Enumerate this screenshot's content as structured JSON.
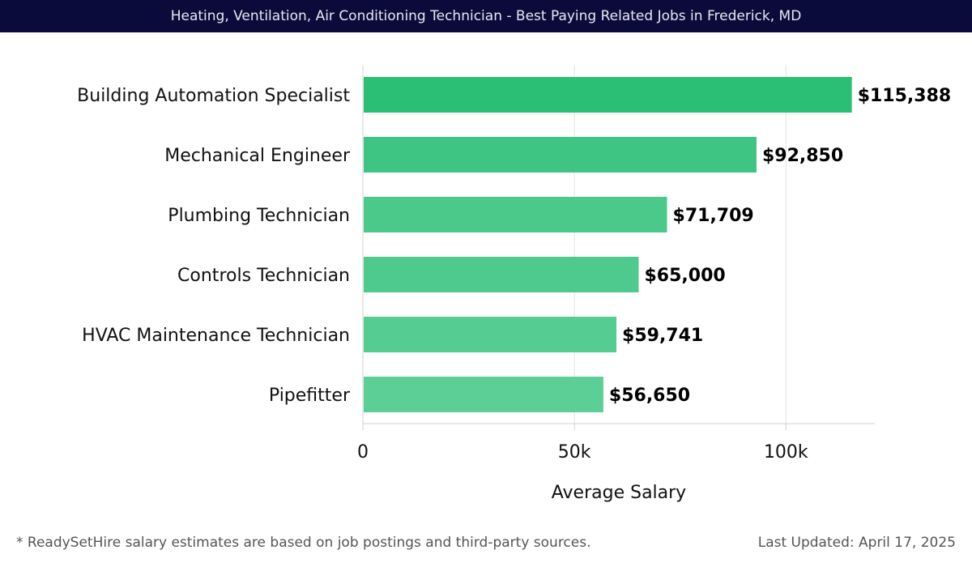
{
  "header": {
    "title": "Heating, Ventilation, Air Conditioning Technician - Best Paying Related Jobs in Frederick, MD"
  },
  "chart_data": {
    "type": "bar",
    "orientation": "horizontal",
    "categories": [
      "Building Automation Specialist",
      "Mechanical Engineer",
      "Plumbing Technician",
      "Controls Technician",
      "HVAC Maintenance Technician",
      "Pipefitter"
    ],
    "values": [
      115388,
      92850,
      71709,
      65000,
      59741,
      56650
    ],
    "value_labels": [
      "$115,388",
      "$92,850",
      "$71,709",
      "$65,000",
      "$59,741",
      "$56,650"
    ],
    "xlabel": "Average Salary",
    "xlim": [
      0,
      121000
    ],
    "xticks": [
      0,
      50000,
      100000
    ],
    "xtick_labels": [
      "0",
      "50k",
      "100k"
    ],
    "grid": true,
    "colors": [
      "#2bbf75",
      "#3fc583",
      "#4bc98b",
      "#4fca8e",
      "#55cc92",
      "#5ccf96"
    ]
  },
  "footer": {
    "note": "* ReadySetHire salary estimates are based on job postings and third-party sources.",
    "updated": "Last Updated: April 17, 2025"
  }
}
